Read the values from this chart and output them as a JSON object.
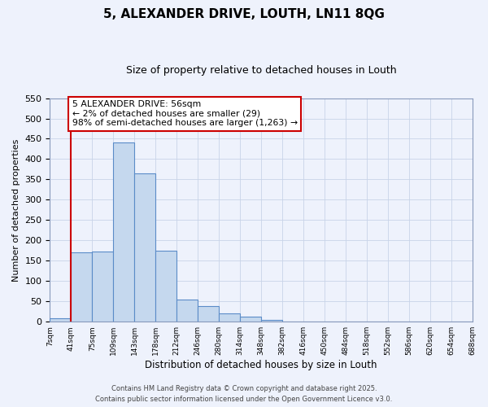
{
  "title": "5, ALEXANDER DRIVE, LOUTH, LN11 8QG",
  "subtitle": "Size of property relative to detached houses in Louth",
  "xlabel": "Distribution of detached houses by size in Louth",
  "ylabel": "Number of detached properties",
  "bar_values": [
    8,
    170,
    172,
    440,
    365,
    175,
    55,
    38,
    20,
    12,
    5,
    0,
    0,
    0,
    0,
    0,
    0,
    0,
    0,
    0
  ],
  "bin_labels": [
    "7sqm",
    "41sqm",
    "75sqm",
    "109sqm",
    "143sqm",
    "178sqm",
    "212sqm",
    "246sqm",
    "280sqm",
    "314sqm",
    "348sqm",
    "382sqm",
    "416sqm",
    "450sqm",
    "484sqm",
    "518sqm",
    "552sqm",
    "586sqm",
    "620sqm",
    "654sqm",
    "688sqm"
  ],
  "bar_color": "#c5d8ee",
  "bar_edge_color": "#5b8cc8",
  "ylim": [
    0,
    550
  ],
  "yticks": [
    0,
    50,
    100,
    150,
    200,
    250,
    300,
    350,
    400,
    450,
    500,
    550
  ],
  "vline_x": 1,
  "vline_color": "#cc0000",
  "annotation_text": "5 ALEXANDER DRIVE: 56sqm\n← 2% of detached houses are smaller (29)\n98% of semi-detached houses are larger (1,263) →",
  "annotation_box_color": "#ffffff",
  "annotation_box_edge_color": "#cc0000",
  "footer_line1": "Contains HM Land Registry data © Crown copyright and database right 2025.",
  "footer_line2": "Contains public sector information licensed under the Open Government Licence v3.0.",
  "background_color": "#eef2fc",
  "grid_color": "#c8d4e8"
}
